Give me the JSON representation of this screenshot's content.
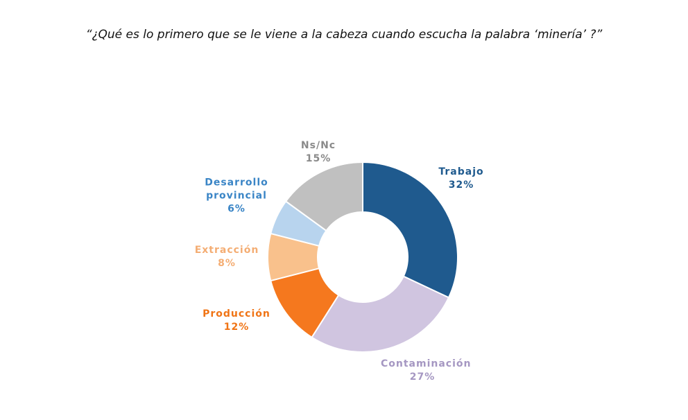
{
  "chart_data": {
    "type": "pie",
    "title": "“¿Qué es lo primero que se le viene a la cabeza cuando escucha la palabra  ‘minería’ ?”",
    "categories": [
      "Trabajo",
      "Contaminación",
      "Producción",
      "Extracción",
      "Desarrollo provincial",
      "Ns/Nc"
    ],
    "values": [
      32,
      27,
      12,
      8,
      6,
      15
    ],
    "value_labels": [
      "32%",
      "27%",
      "12%",
      "8%",
      "6%",
      "15%"
    ],
    "colors": [
      "#1f5a8e",
      "#d0c5e0",
      "#f5781e",
      "#f9c18c",
      "#b8d4ee",
      "#c0c0c0"
    ],
    "label_colors": [
      "#1f5a8e",
      "#a597c2",
      "#f07415",
      "#f4ad73",
      "#3a85c6",
      "#8a8a8a"
    ],
    "donut": true
  }
}
